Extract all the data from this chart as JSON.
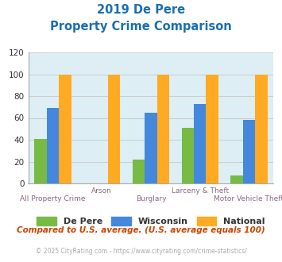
{
  "title_line1": "2019 De Pere",
  "title_line2": "Property Crime Comparison",
  "title_color": "#1a6faf",
  "categories": [
    "All Property Crime",
    "Arson",
    "Burglary",
    "Larceny & Theft",
    "Motor Vehicle Theft"
  ],
  "de_pere": [
    41,
    0,
    22,
    51,
    7
  ],
  "wisconsin": [
    69,
    0,
    65,
    73,
    58
  ],
  "national": [
    100,
    100,
    100,
    100,
    100
  ],
  "de_pere_color": "#77bb44",
  "wisconsin_color": "#4488dd",
  "national_color": "#ffaa22",
  "ylim": [
    0,
    120
  ],
  "yticks": [
    0,
    20,
    40,
    60,
    80,
    100,
    120
  ],
  "grid_color": "#cccccc",
  "bg_color": "#ddeef5",
  "legend_labels": [
    "De Pere",
    "Wisconsin",
    "National"
  ],
  "footnote1": "Compared to U.S. average. (U.S. average equals 100)",
  "footnote2": "© 2025 CityRating.com - https://www.cityrating.com/crime-statistics/",
  "footnote1_color": "#cc4400",
  "footnote2_color": "#aaaaaa",
  "footnote2_link_color": "#4488dd",
  "xlabel_color": "#886688",
  "bar_width": 0.25
}
